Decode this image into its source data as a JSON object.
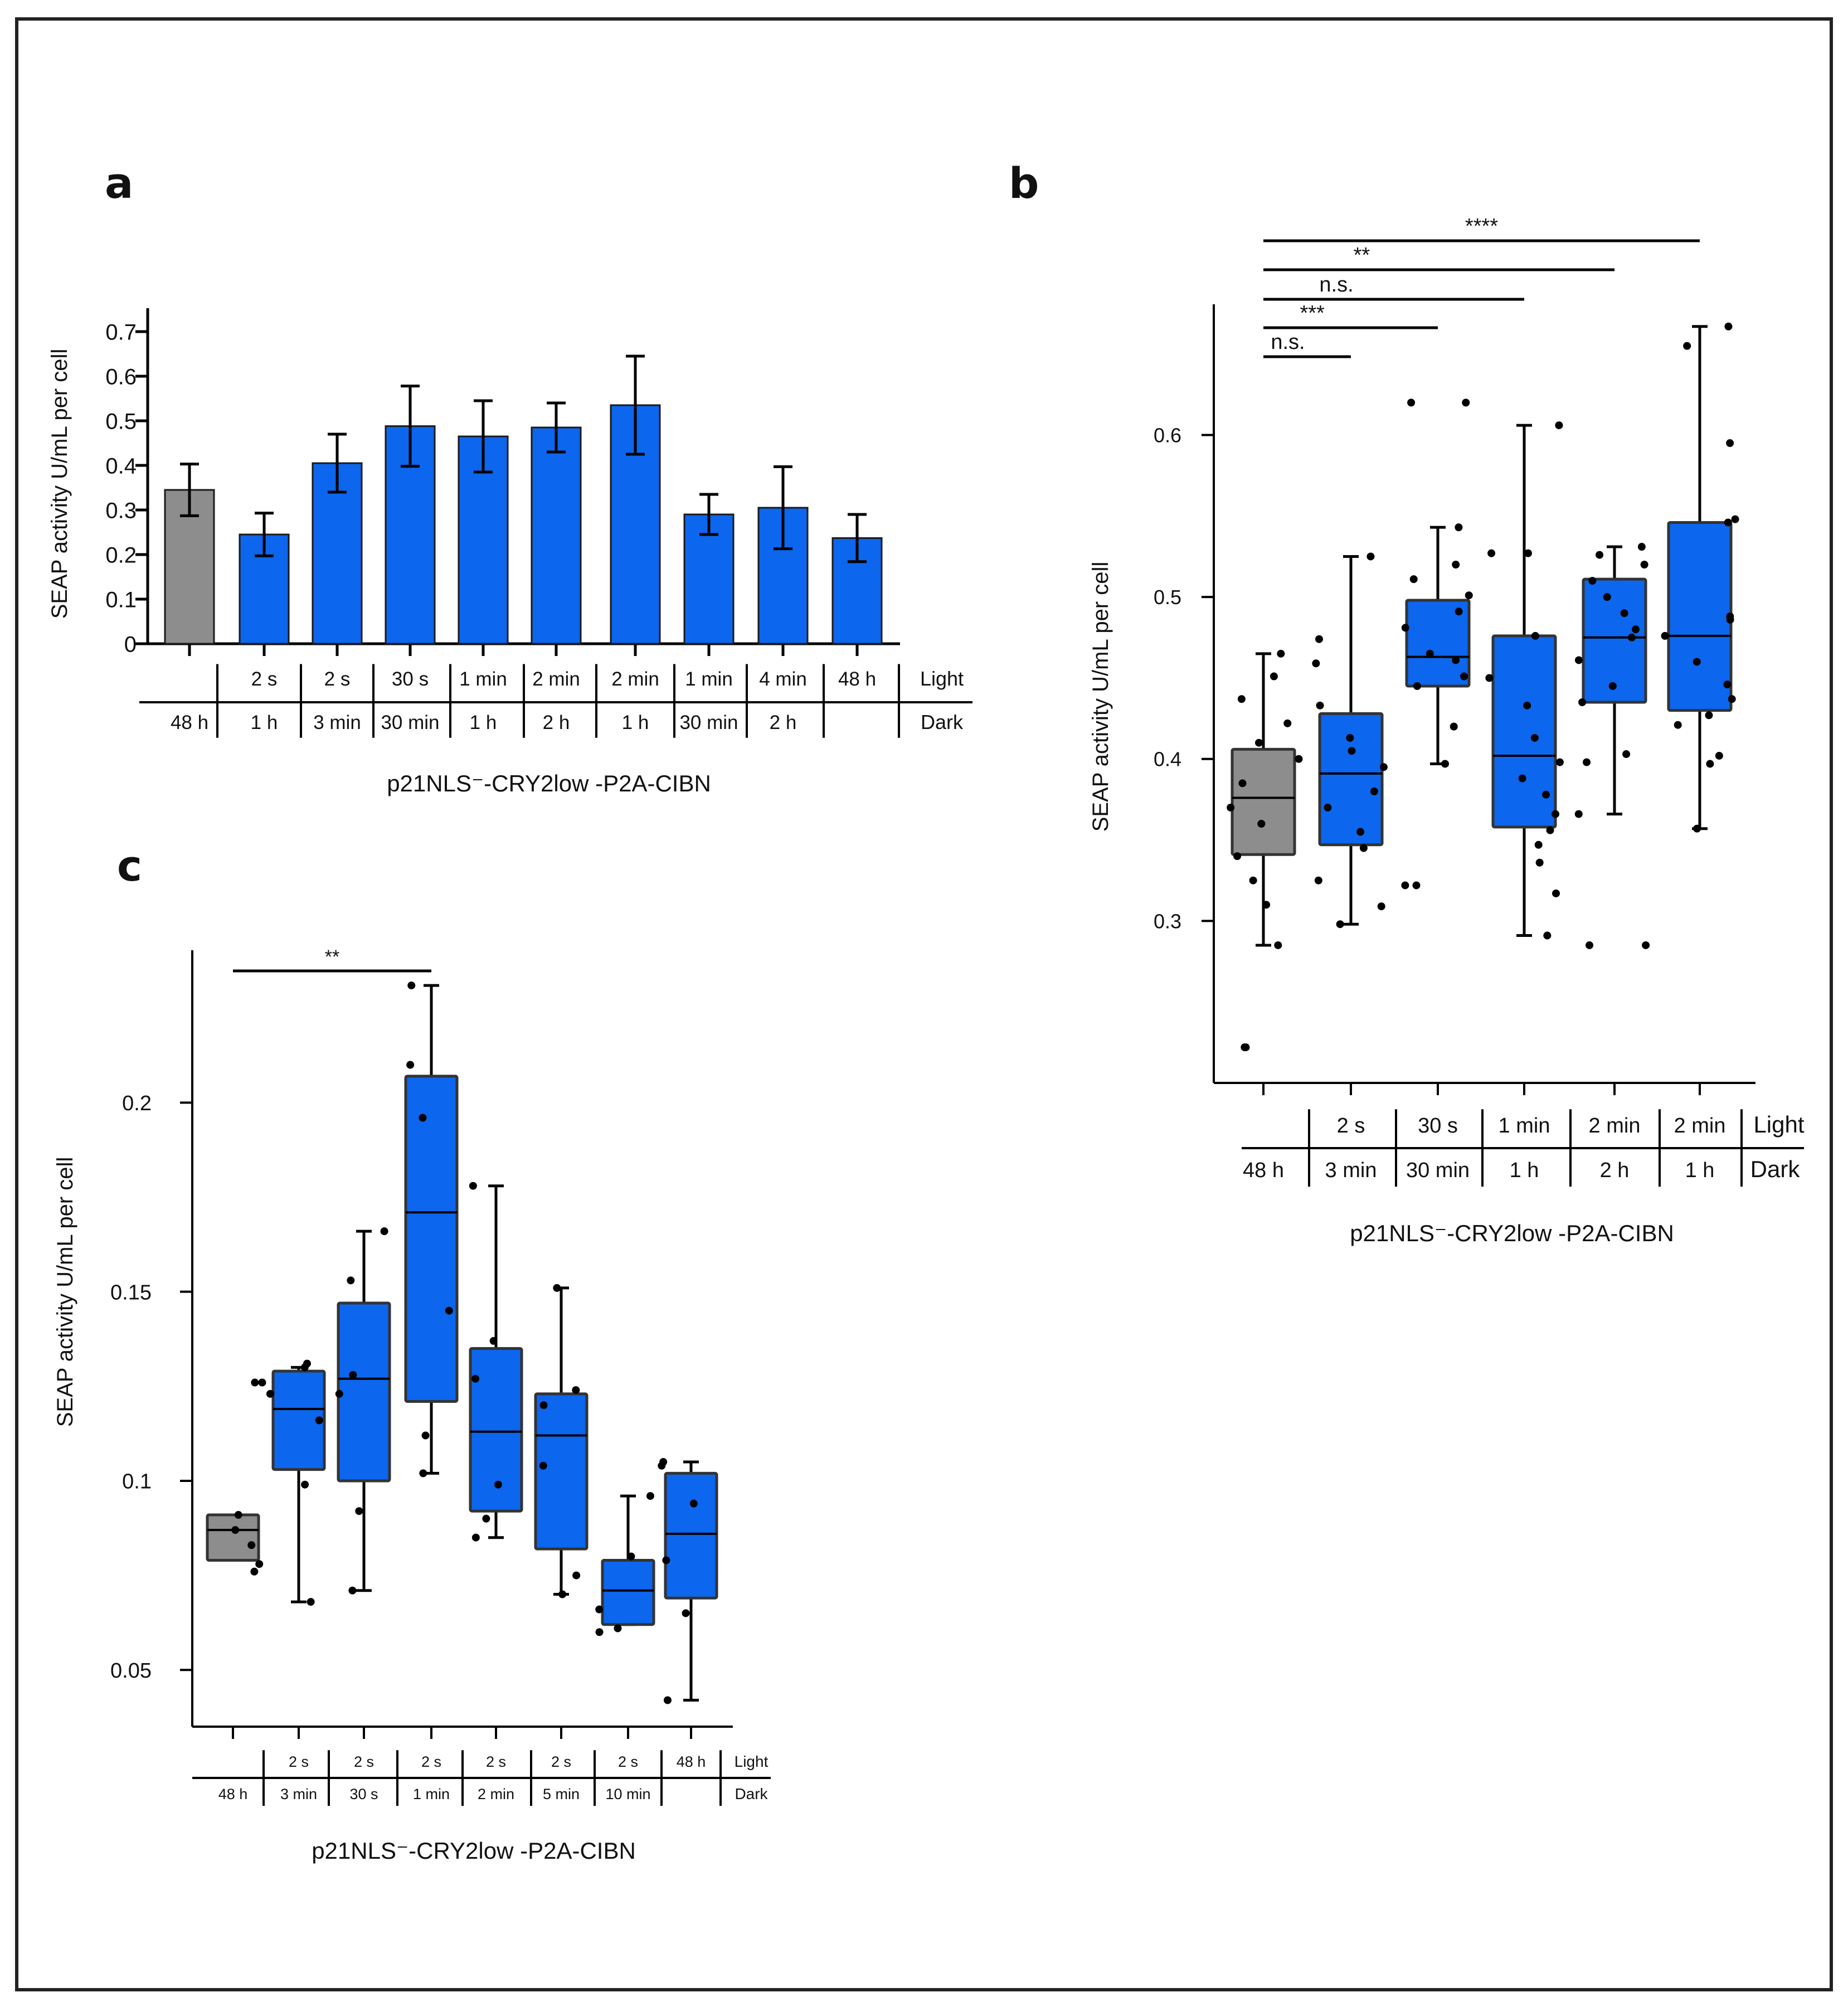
{
  "colors": {
    "light_group": "#0c66ee",
    "dark_group": "#8d8d8d",
    "outline": "#1a1a1a",
    "frame": "#222222"
  },
  "panels": [
    {
      "label": "a",
      "chart_type": "bar",
      "ylabel": "SEAP activity U/mL per cell",
      "xlabel": "p21NLS⁻-CRY2low -P2A-CIBN",
      "row_labels": {
        "light": "Light",
        "dark": "Dark"
      }
    },
    {
      "label": "b",
      "chart_type": "box",
      "ylabel": "SEAP activity U/mL per cell",
      "xlabel": "p21NLS⁻-CRY2low -P2A-CIBN",
      "row_labels": {
        "light": "Light",
        "dark": "Dark"
      }
    },
    {
      "label": "c",
      "chart_type": "box",
      "ylabel": "SEAP activity U/mL per cell",
      "xlabel": "p21NLS⁻-CRY2low -P2A-CIBN",
      "row_labels": {
        "light": "Light",
        "dark": "Dark"
      }
    }
  ],
  "chart_data": [
    {
      "panel": "a",
      "type": "bar",
      "ylim": [
        0,
        0.75
      ],
      "yticks": [
        0,
        0.1,
        0.2,
        0.3,
        0.4,
        0.5,
        0.6,
        0.7
      ],
      "ytick_labels": [
        "0",
        "0.1",
        "0.2",
        "0.3",
        "0.4",
        "0.5",
        "0.6",
        "0.7"
      ],
      "light": [
        "",
        "2 s",
        "2 s",
        "30 s",
        "1 min",
        "2 min",
        "2 min",
        "1 min",
        "4 min",
        "48 h"
      ],
      "dark": [
        "48 h",
        "1 h",
        "3 min",
        "30 min",
        "1 h",
        "2 h",
        "1 h",
        "30 min",
        "2 h",
        ""
      ],
      "values": [
        0.345,
        0.245,
        0.405,
        0.488,
        0.465,
        0.485,
        0.535,
        0.29,
        0.305,
        0.237
      ],
      "errors": [
        0.058,
        0.048,
        0.065,
        0.09,
        0.08,
        0.055,
        0.11,
        0.045,
        0.092,
        0.053
      ],
      "group": [
        "dark",
        "light",
        "light",
        "light",
        "light",
        "light",
        "light",
        "light",
        "light",
        "light"
      ]
    },
    {
      "panel": "b",
      "type": "box",
      "ylim": [
        0.2,
        0.68
      ],
      "yticks": [
        0.3,
        0.4,
        0.5,
        0.6
      ],
      "ytick_labels": [
        "0.3",
        "0.4",
        "0.5",
        "0.6"
      ],
      "light": [
        "",
        "2 s",
        "30 s",
        "1 min",
        "2 min",
        "2 min"
      ],
      "dark": [
        "48 h",
        "3 min",
        "30 min",
        "1 h",
        "2 h",
        "1 h"
      ],
      "group": [
        "dark",
        "light",
        "light",
        "light",
        "light",
        "light"
      ],
      "boxes": [
        {
          "whislo": 0.285,
          "q1": 0.341,
          "med": 0.376,
          "q3": 0.406,
          "whishi": 0.465
        },
        {
          "whislo": 0.298,
          "q1": 0.347,
          "med": 0.391,
          "q3": 0.428,
          "whishi": 0.525
        },
        {
          "whislo": 0.397,
          "q1": 0.445,
          "med": 0.463,
          "q3": 0.498,
          "whishi": 0.543
        },
        {
          "whislo": 0.291,
          "q1": 0.358,
          "med": 0.402,
          "q3": 0.476,
          "whishi": 0.606
        },
        {
          "whislo": 0.366,
          "q1": 0.435,
          "med": 0.475,
          "q3": 0.511,
          "whishi": 0.531
        },
        {
          "whislo": 0.357,
          "q1": 0.43,
          "med": 0.476,
          "q3": 0.546,
          "whishi": 0.667
        }
      ],
      "points": [
        [
          0.222,
          0.222,
          0.285,
          0.31,
          0.325,
          0.34,
          0.36,
          0.37,
          0.385,
          0.4,
          0.41,
          0.422,
          0.437,
          0.451,
          0.465
        ],
        [
          0.298,
          0.309,
          0.325,
          0.345,
          0.355,
          0.37,
          0.38,
          0.395,
          0.405,
          0.413,
          0.433,
          0.459,
          0.474,
          0.525
        ],
        [
          0.322,
          0.322,
          0.397,
          0.42,
          0.445,
          0.451,
          0.461,
          0.465,
          0.481,
          0.491,
          0.501,
          0.511,
          0.52,
          0.543,
          0.62,
          0.62
        ],
        [
          0.291,
          0.317,
          0.336,
          0.347,
          0.356,
          0.366,
          0.378,
          0.388,
          0.398,
          0.413,
          0.433,
          0.45,
          0.476,
          0.527,
          0.527,
          0.606
        ],
        [
          0.285,
          0.285,
          0.366,
          0.398,
          0.403,
          0.435,
          0.445,
          0.461,
          0.475,
          0.48,
          0.49,
          0.5,
          0.51,
          0.52,
          0.526,
          0.531
        ],
        [
          0.357,
          0.397,
          0.402,
          0.421,
          0.427,
          0.437,
          0.446,
          0.46,
          0.476,
          0.486,
          0.488,
          0.546,
          0.548,
          0.595,
          0.655,
          0.667
        ]
      ],
      "significance": [
        {
          "from": 0,
          "to": 1,
          "label": "n.s."
        },
        {
          "from": 0,
          "to": 2,
          "label": "***"
        },
        {
          "from": 0,
          "to": 3,
          "label": "n.s."
        },
        {
          "from": 0,
          "to": 4,
          "label": "**"
        },
        {
          "from": 0,
          "to": 5,
          "label": "****"
        }
      ]
    },
    {
      "panel": "c",
      "type": "box",
      "ylim": [
        0.035,
        0.24
      ],
      "yticks": [
        0.05,
        0.1,
        0.15,
        0.2
      ],
      "ytick_labels": [
        "0.05",
        "0.1",
        "0.15",
        "0.2"
      ],
      "light": [
        "",
        "2 s",
        "2 s",
        "2 s",
        "2 s",
        "2 s",
        "2 s",
        "48 h"
      ],
      "dark": [
        "48 h",
        "3 min",
        "30 s",
        "1 min",
        "2 min",
        "5 min",
        "10 min",
        ""
      ],
      "group": [
        "dark",
        "light",
        "light",
        "light",
        "light",
        "light",
        "light",
        "light"
      ],
      "boxes": [
        {
          "whislo": 0.079,
          "q1": 0.079,
          "med": 0.087,
          "q3": 0.091,
          "whishi": 0.091
        },
        {
          "whislo": 0.068,
          "q1": 0.103,
          "med": 0.119,
          "q3": 0.129,
          "whishi": 0.13
        },
        {
          "whislo": 0.071,
          "q1": 0.1,
          "med": 0.127,
          "q3": 0.147,
          "whishi": 0.166
        },
        {
          "whislo": 0.102,
          "q1": 0.121,
          "med": 0.171,
          "q3": 0.207,
          "whishi": 0.231
        },
        {
          "whislo": 0.085,
          "q1": 0.092,
          "med": 0.113,
          "q3": 0.135,
          "whishi": 0.178
        },
        {
          "whislo": 0.07,
          "q1": 0.082,
          "med": 0.112,
          "q3": 0.123,
          "whishi": 0.151
        },
        {
          "whislo": 0.062,
          "q1": 0.062,
          "med": 0.071,
          "q3": 0.079,
          "whishi": 0.096
        },
        {
          "whislo": 0.042,
          "q1": 0.069,
          "med": 0.086,
          "q3": 0.102,
          "whishi": 0.105
        }
      ],
      "points": [
        [
          0.076,
          0.078,
          0.083,
          0.087,
          0.091,
          0.126,
          0.126
        ],
        [
          0.068,
          0.099,
          0.116,
          0.123,
          0.13,
          0.131
        ],
        [
          0.071,
          0.092,
          0.123,
          0.128,
          0.153,
          0.166
        ],
        [
          0.102,
          0.112,
          0.145,
          0.196,
          0.21,
          0.231
        ],
        [
          0.085,
          0.09,
          0.099,
          0.127,
          0.137,
          0.178
        ],
        [
          0.07,
          0.075,
          0.104,
          0.12,
          0.124,
          0.151
        ],
        [
          0.06,
          0.061,
          0.066,
          0.08,
          0.096
        ],
        [
          0.042,
          0.065,
          0.079,
          0.094,
          0.104,
          0.105
        ]
      ],
      "significance": [
        {
          "from": 0,
          "to": 3,
          "label": "**"
        }
      ]
    }
  ]
}
